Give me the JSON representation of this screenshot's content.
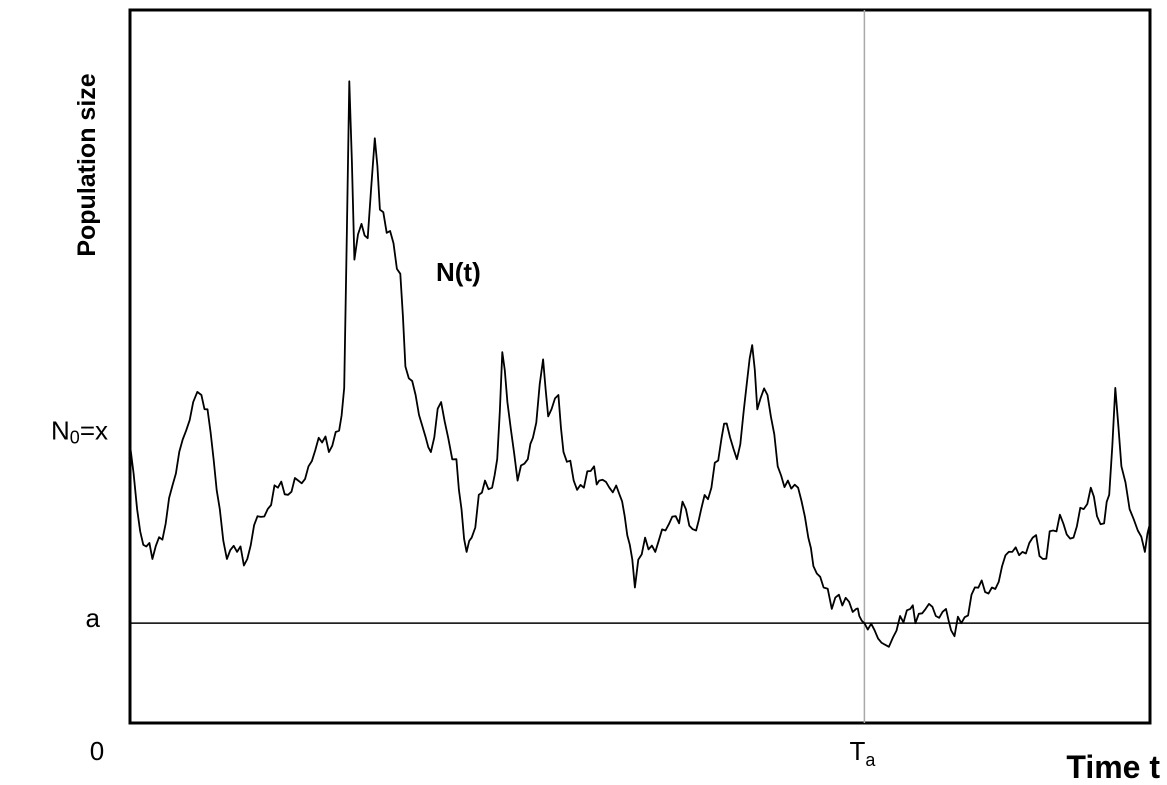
{
  "chart_data": {
    "type": "line",
    "title": "",
    "xlabel": "Time t",
    "ylabel": "Population size",
    "xlim": [
      0,
      100
    ],
    "ylim": [
      0,
      100
    ],
    "grid": false,
    "legend": "none",
    "line_color": "#000000",
    "reference_line_color": "#a9a9a9",
    "y_ticks": [
      {
        "label_main": "N",
        "label_sub": "0",
        "label_suffix": "=x",
        "value": 41
      },
      {
        "label_main": "a",
        "label_sub": "",
        "label_suffix": "",
        "value": 14
      }
    ],
    "x_ticks": [
      {
        "label_main": "0",
        "label_sub": "",
        "value": 0
      },
      {
        "label_main": "T",
        "label_sub": "a",
        "value": 72
      }
    ],
    "annotations": [
      {
        "text": "N(t)",
        "x": 30,
        "y": 62
      }
    ],
    "series": [
      {
        "values": [
          [
            0,
            39
          ],
          [
            0.7,
            30
          ],
          [
            1.3,
            25
          ],
          [
            2.2,
            23
          ],
          [
            3.5,
            28
          ],
          [
            4.5,
            35
          ],
          [
            5.5,
            41
          ],
          [
            6.2,
            45
          ],
          [
            7.0,
            46
          ],
          [
            7.6,
            44
          ],
          [
            8.2,
            37
          ],
          [
            8.8,
            30
          ],
          [
            9.5,
            23
          ],
          [
            10.5,
            24
          ],
          [
            11.5,
            23
          ],
          [
            12.5,
            29
          ],
          [
            13.5,
            30
          ],
          [
            14.5,
            33
          ],
          [
            15.5,
            32
          ],
          [
            16.5,
            34
          ],
          [
            17.5,
            36
          ],
          [
            18.5,
            40
          ],
          [
            19.5,
            38
          ],
          [
            20.5,
            41
          ],
          [
            21.0,
            47
          ],
          [
            21.5,
            90
          ],
          [
            22.0,
            65
          ],
          [
            22.7,
            70
          ],
          [
            23.3,
            68
          ],
          [
            24.0,
            82
          ],
          [
            24.5,
            72
          ],
          [
            25.5,
            69
          ],
          [
            26.5,
            63
          ],
          [
            27.0,
            50
          ],
          [
            28.0,
            46
          ],
          [
            29.0,
            40
          ],
          [
            29.5,
            38
          ],
          [
            30.5,
            45
          ],
          [
            31.2,
            40
          ],
          [
            32.0,
            37
          ],
          [
            32.5,
            30
          ],
          [
            33.0,
            24
          ],
          [
            33.5,
            26
          ],
          [
            34.2,
            32
          ],
          [
            34.8,
            34
          ],
          [
            35.5,
            33
          ],
          [
            36.0,
            37
          ],
          [
            36.5,
            52
          ],
          [
            37.0,
            45
          ],
          [
            38.0,
            34
          ],
          [
            39.0,
            37
          ],
          [
            39.5,
            40
          ],
          [
            40.5,
            51
          ],
          [
            41.0,
            43
          ],
          [
            42.0,
            46
          ],
          [
            42.5,
            38
          ],
          [
            43.5,
            34
          ],
          [
            44.5,
            33
          ],
          [
            45.5,
            36
          ],
          [
            46.0,
            34
          ],
          [
            47.0,
            33
          ],
          [
            48.0,
            32
          ],
          [
            48.5,
            29
          ],
          [
            49.0,
            25
          ],
          [
            49.5,
            19
          ],
          [
            50.5,
            26
          ],
          [
            51.5,
            24
          ],
          [
            52.5,
            27
          ],
          [
            53.5,
            29
          ],
          [
            54.5,
            30
          ],
          [
            55.5,
            27
          ],
          [
            56.0,
            30
          ],
          [
            57.0,
            33
          ],
          [
            58.0,
            40
          ],
          [
            58.5,
            42
          ],
          [
            59.5,
            37
          ],
          [
            60.5,
            48
          ],
          [
            61.0,
            53
          ],
          [
            61.5,
            44
          ],
          [
            62.5,
            46
          ],
          [
            63.5,
            36
          ],
          [
            64.5,
            34
          ],
          [
            65.5,
            33
          ],
          [
            66.5,
            26
          ],
          [
            67.0,
            22
          ],
          [
            68.0,
            19
          ],
          [
            68.8,
            16
          ],
          [
            69.5,
            18
          ],
          [
            70.5,
            17
          ],
          [
            71.2,
            16
          ],
          [
            71.5,
            15
          ],
          [
            72.0,
            14
          ],
          [
            73.0,
            13
          ],
          [
            74.0,
            11
          ],
          [
            74.8,
            12
          ],
          [
            75.5,
            15
          ],
          [
            76.5,
            16
          ],
          [
            77.0,
            14
          ],
          [
            78.0,
            16
          ],
          [
            79.0,
            15
          ],
          [
            80.0,
            16
          ],
          [
            80.5,
            13
          ],
          [
            81.5,
            14
          ],
          [
            82.5,
            18
          ],
          [
            83.5,
            20
          ],
          [
            84.5,
            19
          ],
          [
            85.5,
            22
          ],
          [
            86.5,
            24
          ],
          [
            87.5,
            24
          ],
          [
            88.5,
            26
          ],
          [
            89.5,
            23
          ],
          [
            90.5,
            27
          ],
          [
            91.5,
            28
          ],
          [
            92.5,
            26
          ],
          [
            93.5,
            30
          ],
          [
            94.2,
            33
          ],
          [
            94.8,
            29
          ],
          [
            95.5,
            28
          ],
          [
            96.0,
            32
          ],
          [
            96.6,
            47
          ],
          [
            97.2,
            36
          ],
          [
            98.0,
            30
          ],
          [
            98.8,
            27
          ],
          [
            99.5,
            24
          ],
          [
            100,
            28
          ]
        ]
      }
    ]
  }
}
